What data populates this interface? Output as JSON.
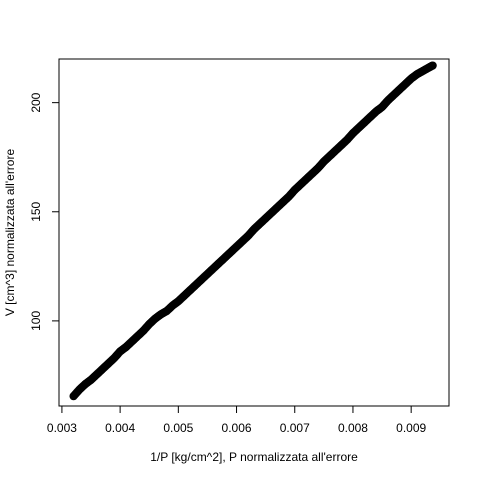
{
  "chart_data": {
    "type": "scatter",
    "title": "",
    "xlabel": "1/P [kg/cm^2], P normalizzata all'errore",
    "ylabel": "V [cm^3] normalizzata all'errore",
    "xlim": [
      0.00295,
      0.00965
    ],
    "ylim": [
      61,
      220
    ],
    "x_ticks": [
      "0.003",
      "0.004",
      "0.005",
      "0.006",
      "0.007",
      "0.008",
      "0.009"
    ],
    "x_tick_values": [
      0.003,
      0.004,
      0.005,
      0.006,
      0.007,
      0.008,
      0.009
    ],
    "y_ticks": [
      "100",
      "150",
      "200"
    ],
    "y_tick_values": [
      100,
      150,
      200
    ],
    "grid": false,
    "marker_color": "#000000",
    "series": [
      {
        "x": [
          0.0032,
          0.0033,
          0.0034,
          0.0035,
          0.0036,
          0.0037,
          0.0038,
          0.0039,
          0.004,
          0.0041,
          0.0042,
          0.0043,
          0.0044,
          0.0045,
          0.0046,
          0.0047,
          0.0048,
          0.0049,
          0.005,
          0.0051,
          0.0052,
          0.0053,
          0.0054,
          0.0055,
          0.0056,
          0.0057,
          0.0058,
          0.0059,
          0.006,
          0.0061,
          0.0062,
          0.0063,
          0.0064,
          0.0065,
          0.0066,
          0.0067,
          0.0068,
          0.0069,
          0.007,
          0.0071,
          0.0072,
          0.0073,
          0.0074,
          0.0075,
          0.0076,
          0.0077,
          0.0078,
          0.0079,
          0.008,
          0.0081,
          0.0082,
          0.0083,
          0.0084,
          0.0085,
          0.0086,
          0.0087,
          0.0088,
          0.0089,
          0.009,
          0.0091,
          0.0092,
          0.0093,
          0.00937
        ],
        "y": [
          65.5,
          68.5,
          71.0,
          73.0,
          75.5,
          78.0,
          80.5,
          83.0,
          86.0,
          88.0,
          90.5,
          93.0,
          95.5,
          98.5,
          101.0,
          103.0,
          104.5,
          107.0,
          109.0,
          111.5,
          114.0,
          116.5,
          119.0,
          121.5,
          124.0,
          126.5,
          129.0,
          131.5,
          134.0,
          136.5,
          139.0,
          142.0,
          144.5,
          147.0,
          149.5,
          152.0,
          154.5,
          157.0,
          160.0,
          162.5,
          165.0,
          167.5,
          170.0,
          173.0,
          175.5,
          178.0,
          180.5,
          183.0,
          186.0,
          188.5,
          191.0,
          193.5,
          196.0,
          198.0,
          201.0,
          203.5,
          206.0,
          208.5,
          211.0,
          213.0,
          214.5,
          216.0,
          217.0
        ]
      }
    ]
  }
}
